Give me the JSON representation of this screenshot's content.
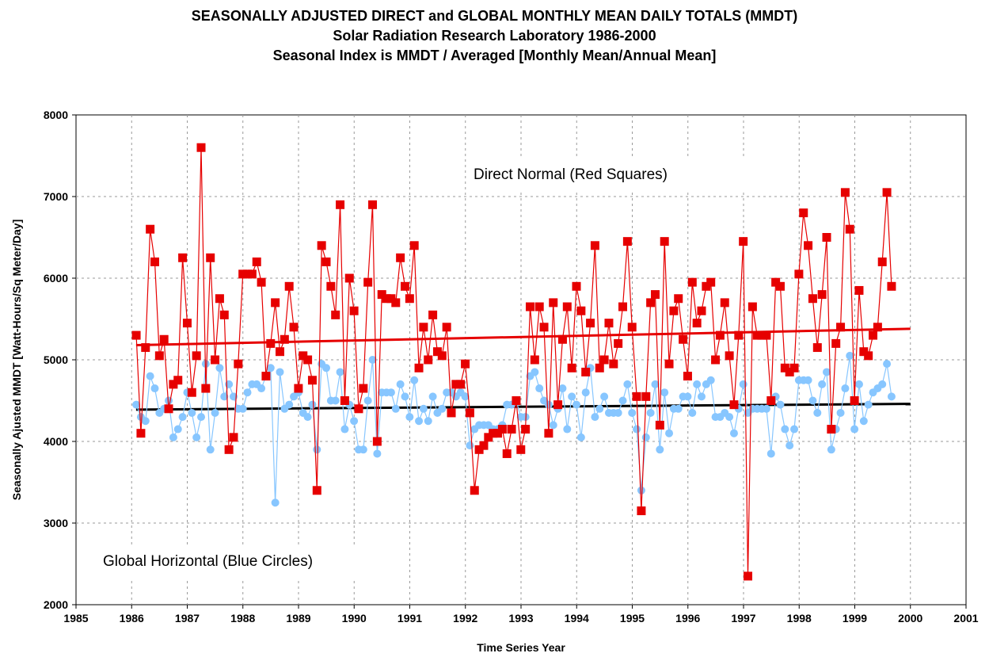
{
  "title_lines": [
    "SEASONALLY ADJUSTED  DIRECT and GLOBAL MONTHLY MEAN DAILY TOTALS (MMDT)",
    "Solar Radiation Research Laboratory 1986-2000",
    "Seasonal Index is MMDT  / Averaged [Monthly Mean/Annual Mean]"
  ],
  "chart_data": {
    "type": "line",
    "title": "SEASONALLY ADJUSTED  DIRECT and GLOBAL MONTHLY MEAN DAILY TOTALS (MMDT)",
    "xlabel": "Time Series Year",
    "ylabel": "Seasonally Ajusted  MMDT [Watt-Hours/Sq Meter/Day]",
    "xlim": [
      1985,
      2001
    ],
    "ylim": [
      2000,
      8000
    ],
    "x_ticks": [
      "1985",
      "1986",
      "1987",
      "1988",
      "1989",
      "1990",
      "1991",
      "1992",
      "1993",
      "1994",
      "1995",
      "1996",
      "1997",
      "1998",
      "1999",
      "2000",
      "2001"
    ],
    "y_ticks": [
      "2000",
      "3000",
      "4000",
      "5000",
      "6000",
      "7000",
      "8000"
    ],
    "grid": true,
    "x_start": 1986.083,
    "x_step": 0.0833,
    "annotations": [
      "Direct Normal (Red Squares)",
      "Global Horizontal (Blue Circles)"
    ],
    "series": [
      {
        "name": "Direct Normal (Red Squares)",
        "color": "#e60000",
        "marker": "square",
        "values": [
          5300,
          4100,
          5150,
          6600,
          6200,
          5050,
          5250,
          4400,
          4700,
          4750,
          6250,
          5450,
          4600,
          5050,
          7600,
          4650,
          6250,
          5000,
          5750,
          5550,
          3900,
          4050,
          4950,
          6050,
          6050,
          6050,
          6200,
          5950,
          4800,
          5200,
          5700,
          5100,
          5250,
          5900,
          5400,
          4650,
          5050,
          5000,
          4750,
          3400,
          6400,
          6200,
          5900,
          5550,
          6900,
          4500,
          6000,
          5600,
          4400,
          4650,
          5950,
          6900,
          4000,
          5800,
          5750,
          5750,
          5700,
          6250,
          5900,
          5750,
          6400,
          4900,
          5400,
          5000,
          5550,
          5100,
          5050,
          5400,
          4350,
          4700,
          4700,
          4950,
          4350,
          3400,
          3900,
          3950,
          4050,
          4100,
          4100,
          4150,
          3850,
          4150,
          4500,
          3900,
          4150,
          5650,
          5000,
          5650,
          5400,
          4100,
          5700,
          4450,
          5250,
          5650,
          4900,
          5900,
          5600,
          4850,
          5450,
          6400,
          4900,
          5000,
          5450,
          4950,
          5200,
          5650,
          6450,
          5400,
          4550,
          3150,
          4550,
          5700,
          5800,
          4200,
          6450,
          4950,
          5600,
          5750,
          5250,
          4800,
          5950,
          5450,
          5600,
          5900,
          5950,
          5000,
          5300,
          5700,
          5050,
          4450,
          5300,
          6450,
          2350,
          5650,
          5300,
          5300,
          5300,
          4500,
          5950,
          5900,
          4900,
          4850,
          4900,
          6050,
          6800,
          6400,
          5750,
          5150,
          5800,
          6500,
          4150,
          5200,
          5400,
          7050,
          6600,
          4500,
          5850,
          5100,
          5050,
          5300,
          5400,
          6200,
          7050,
          5900
        ]
      },
      {
        "name": "Global Horizontal (Blue Circles)",
        "color": "#87c6ff",
        "marker": "circle",
        "values": [
          4450,
          4300,
          4250,
          4800,
          4650,
          4350,
          4400,
          4500,
          4050,
          4150,
          4300,
          4600,
          4350,
          4050,
          4300,
          4950,
          3900,
          4350,
          4900,
          4550,
          4700,
          4550,
          4400,
          4400,
          4600,
          4700,
          4700,
          4650,
          4800,
          4900,
          3250,
          4850,
          4400,
          4450,
          4550,
          4600,
          4350,
          4300,
          4450,
          3900,
          4950,
          4900,
          4500,
          4500,
          4850,
          4150,
          4450,
          4250,
          3900,
          3900,
          4500,
          5000,
          3850,
          4600,
          4600,
          4600,
          4400,
          4700,
          4550,
          4300,
          4750,
          4250,
          4400,
          4250,
          4550,
          4350,
          4400,
          4600,
          4600,
          4550,
          4600,
          4550,
          3950,
          4150,
          4200,
          4200,
          4200,
          4150,
          4150,
          4200,
          4450,
          4450,
          4500,
          4300,
          4300,
          4800,
          4850,
          4650,
          4500,
          4450,
          4200,
          4400,
          4650,
          4150,
          4550,
          4450,
          4050,
          4600,
          4900,
          4300,
          4400,
          4550,
          4350,
          4350,
          4350,
          4500,
          4700,
          4350,
          4150,
          3400,
          4050,
          4350,
          4700,
          3900,
          4600,
          4100,
          4400,
          4400,
          4550,
          4550,
          4350,
          4700,
          4550,
          4700,
          4750,
          4300,
          4300,
          4350,
          4300,
          4100,
          4400,
          4700,
          4350,
          4400,
          4400,
          4400,
          4400,
          3850,
          4550,
          4450,
          4150,
          3950,
          4150,
          4750,
          4750,
          4750,
          4500,
          4350,
          4700,
          4850,
          3900,
          4150,
          4350,
          4650,
          5050,
          4150,
          4700,
          4250,
          4450,
          4600,
          4650,
          4700,
          4950,
          4550
        ]
      },
      {
        "name": "",
        "color": "#e60000",
        "marker": "none",
        "values": [
          5180,
          5380
        ],
        "x": [
          1986.08,
          2000.0
        ]
      },
      {
        "name": "",
        "color": "#000000",
        "marker": "none",
        "values": [
          4390,
          4460
        ],
        "x": [
          1986.08,
          2000.0
        ]
      }
    ]
  }
}
